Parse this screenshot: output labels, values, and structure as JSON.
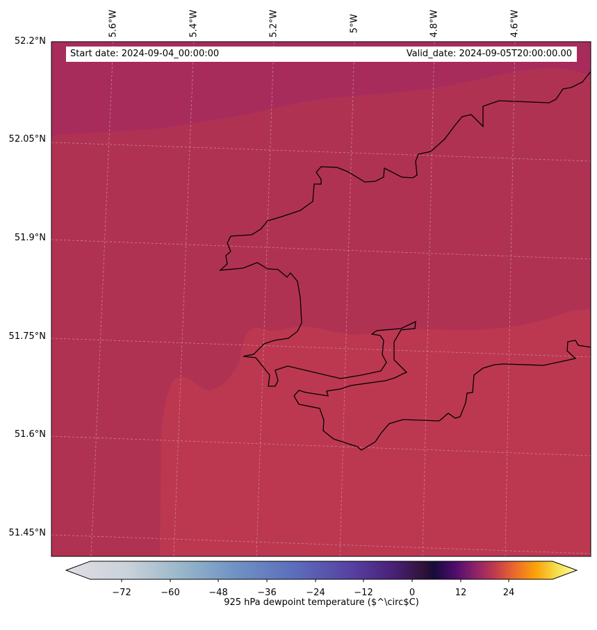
{
  "map": {
    "start_date_text": "Start date: 2024-09-04_00:00:00",
    "valid_date_text": "Valid_date: 2024-09-05T20:00:00.00",
    "lon_labels": [
      "5.6°W",
      "5.4°W",
      "5.2°W",
      "5°W",
      "4.8°W",
      "4.6°W"
    ],
    "lat_labels": [
      "52.2°N",
      "52.05°N",
      "51.9°N",
      "51.75°N",
      "51.6°N",
      "51.45°N"
    ],
    "field_colors": {
      "north": "#a72c5c",
      "mid": "#b03253",
      "south": "#bc3850"
    },
    "coastline_color": "#000000"
  },
  "colorbar": {
    "label": "925 hPa dewpoint temperature ($^\\circ$C)",
    "tick_labels": [
      "−72",
      "−60",
      "−48",
      "−36",
      "−24",
      "−12",
      "0",
      "12",
      "24"
    ],
    "colormap": "inferno-under-twilight",
    "extend": "both"
  }
}
